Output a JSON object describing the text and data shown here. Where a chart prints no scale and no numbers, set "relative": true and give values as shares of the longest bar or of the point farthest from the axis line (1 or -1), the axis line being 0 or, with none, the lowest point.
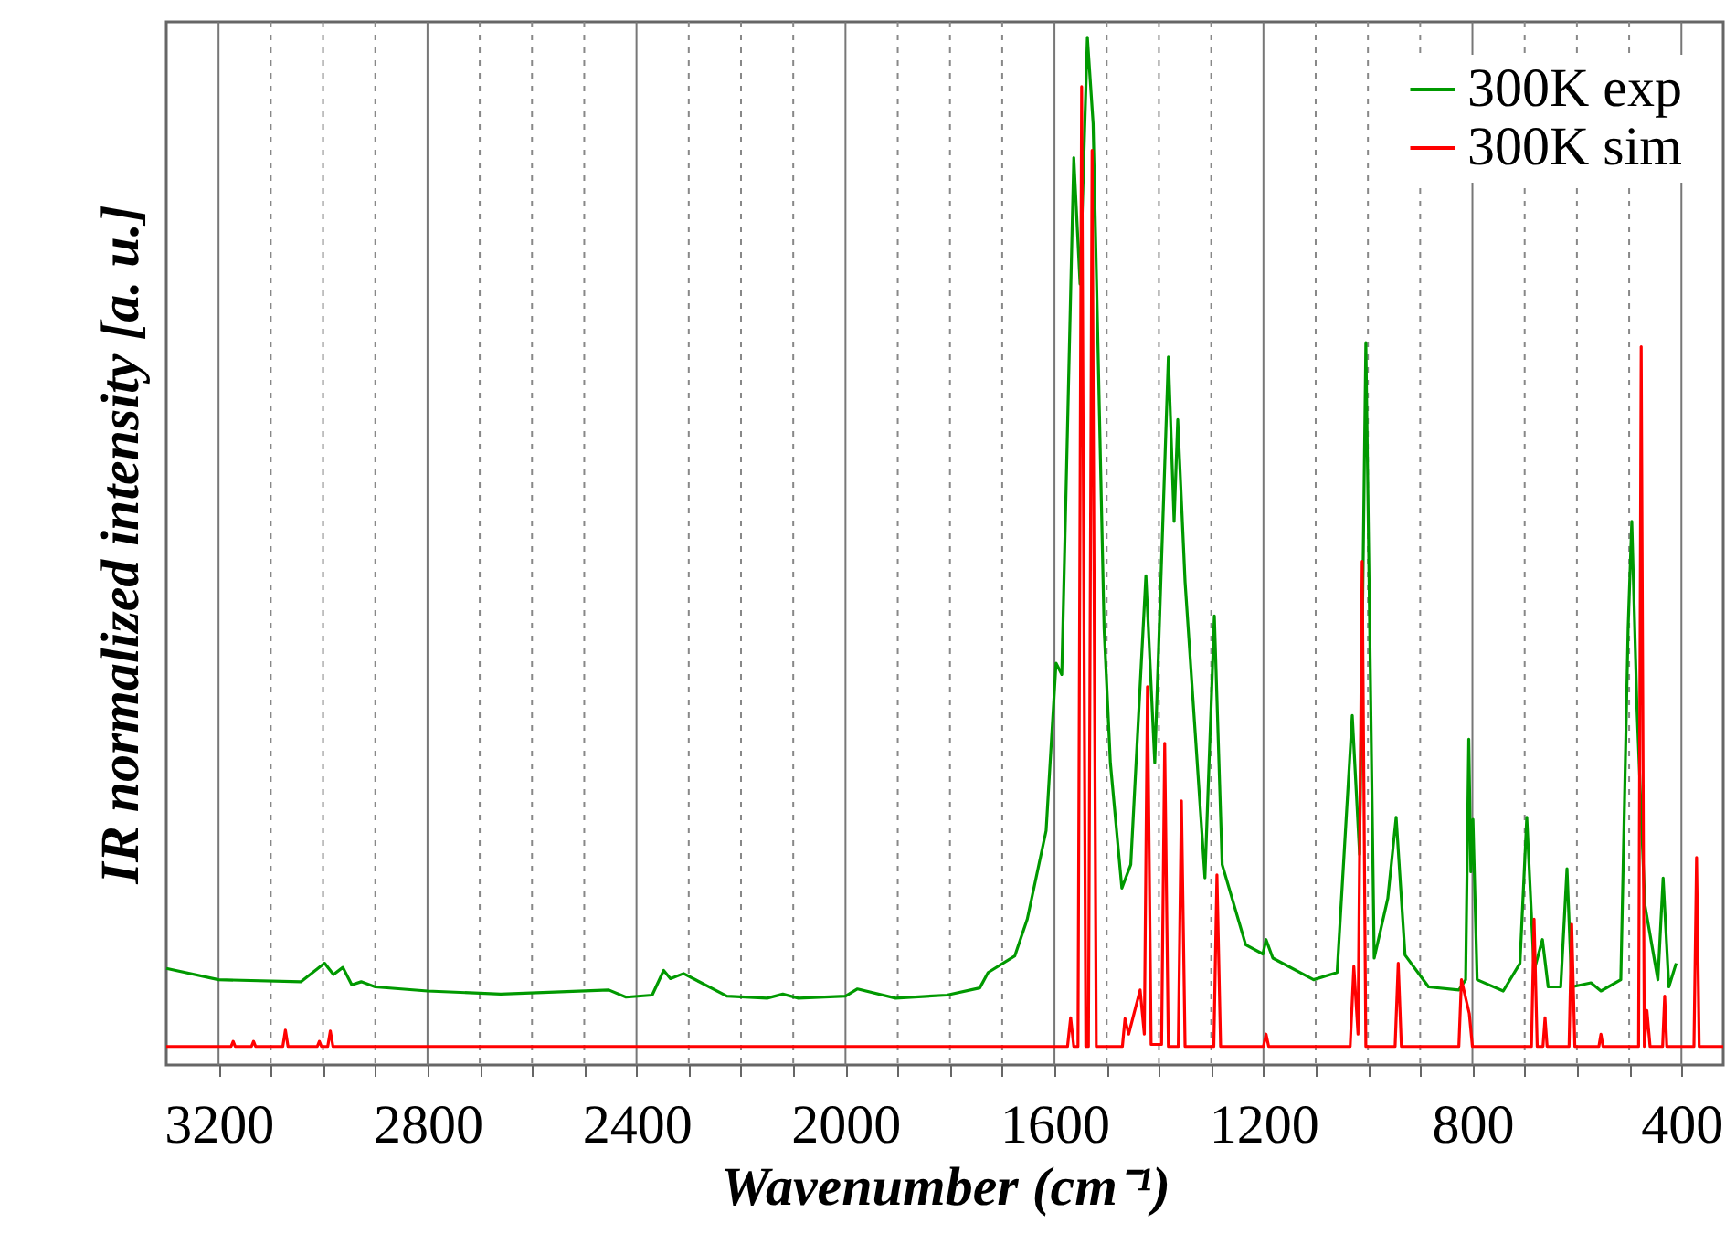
{
  "chart_data": {
    "type": "line",
    "relative": true,
    "xlabel": "Wavenumber (cm⁻¹)",
    "ylabel": "IR normalized intensity [a. u.]",
    "xlim": [
      3300,
      320
    ],
    "xticks": [
      3200,
      {
        "value": 3100,
        "label": null
      },
      {
        "value": 3000,
        "label": null
      },
      {
        "value": 2900,
        "label": null
      },
      2800,
      {
        "value": 2700,
        "label": null
      },
      {
        "value": 2600,
        "label": null
      },
      {
        "value": 2500,
        "label": null
      },
      2400,
      {
        "value": 2300,
        "label": null
      },
      {
        "value": 2200,
        "label": null
      },
      {
        "value": 2100,
        "label": null
      },
      2000,
      {
        "value": 1900,
        "label": null
      },
      {
        "value": 1800,
        "label": null
      },
      {
        "value": 1700,
        "label": null
      },
      1600,
      {
        "value": 1500,
        "label": null
      },
      {
        "value": 1400,
        "label": null
      },
      {
        "value": 1300,
        "label": null
      },
      1200,
      {
        "value": 1100,
        "label": null
      },
      {
        "value": 1000,
        "label": null
      },
      {
        "value": 900,
        "label": null
      },
      800,
      {
        "value": 700,
        "label": null
      },
      {
        "value": 600,
        "label": null
      },
      {
        "value": 500,
        "label": null
      },
      400
    ],
    "grid": "x",
    "legend": "top right",
    "tick_labels": "x",
    "line_style": "solid",
    "marker": "none",
    "series": [
      {
        "name": "300K exp",
        "color": "#009900",
        "x": [
          3300,
          3200,
          3042,
          2997,
          2980,
          2962,
          2945,
          2927,
          2900,
          2800,
          2660,
          2453,
          2420,
          2370,
          2348,
          2335,
          2310,
          2227,
          2150,
          2120,
          2090,
          2000,
          1977,
          1904,
          1806,
          1743,
          1727,
          1676,
          1652,
          1616,
          1597,
          1586,
          1563,
          1551,
          1537,
          1526,
          1505,
          1493,
          1471,
          1454,
          1425,
          1408,
          1382,
          1371,
          1364,
          1350,
          1312,
          1294,
          1279,
          1234,
          1201,
          1195,
          1182,
          1104,
          1059,
          1030,
          1016,
          1004,
          988,
          962,
          946,
          929,
          884,
          826,
          813,
          807,
          803,
          799,
          791,
          741,
          709,
          696,
          682,
          666,
          655,
          631,
          619,
          610,
          573,
          554,
          516,
          502,
          495,
          485,
          470,
          445,
          435,
          424,
          410
        ],
        "values": [
          0.094,
          0.083,
          0.081,
          0.099,
          0.088,
          0.095,
          0.078,
          0.081,
          0.076,
          0.072,
          0.069,
          0.073,
          0.066,
          0.068,
          0.092,
          0.084,
          0.089,
          0.067,
          0.065,
          0.069,
          0.065,
          0.067,
          0.074,
          0.065,
          0.068,
          0.075,
          0.09,
          0.106,
          0.142,
          0.228,
          0.391,
          0.38,
          0.883,
          0.76,
          1,
          0.916,
          0.425,
          0.294,
          0.172,
          0.195,
          0.476,
          0.294,
          0.689,
          0.529,
          0.628,
          0.47,
          0.182,
          0.437,
          0.195,
          0.117,
          0.108,
          0.122,
          0.104,
          0.083,
          0.09,
          0.34,
          0.205,
          0.703,
          0.104,
          0.162,
          0.241,
          0.107,
          0.076,
          0.073,
          0.083,
          0.317,
          0.188,
          0.239,
          0.083,
          0.072,
          0.099,
          0.241,
          0.092,
          0.122,
          0.076,
          0.076,
          0.191,
          0.076,
          0.08,
          0.072,
          0.083,
          0.425,
          0.529,
          0.346,
          0.156,
          0.083,
          0.182,
          0.076,
          0.099
        ]
      },
      {
        "name": "300K sim",
        "color": "#ff0000",
        "x": [
          3300,
          3176,
          3172,
          3168,
          3137,
          3133,
          3129,
          3077,
          3072,
          3067,
          3011,
          3007,
          3003,
          2991,
          2986,
          2981,
          1575,
          1569,
          1563,
          1555,
          1548,
          1540,
          1535,
          1528,
          1520,
          1470,
          1465,
          1458,
          1436,
          1428,
          1422,
          1415,
          1395,
          1389,
          1382,
          1363,
          1357,
          1350,
          1295,
          1289,
          1282,
          1200,
          1195,
          1190,
          1034,
          1027,
          1019,
          1011,
          1004,
          948,
          942,
          936,
          826,
          821,
          806,
          800,
          687,
          682,
          676,
          665,
          661,
          657,
          615,
          610,
          604,
          558,
          554,
          550,
          482,
          477,
          471,
          466,
          460,
          436,
          432,
          428,
          376,
          371,
          366,
          320
        ],
        "values": [
          0.018,
          0.018,
          0.023,
          0.018,
          0.018,
          0.023,
          0.018,
          0.018,
          0.034,
          0.018,
          0.018,
          0.023,
          0.018,
          0.018,
          0.033,
          0.018,
          0.018,
          0.046,
          0.018,
          0.018,
          0.952,
          0.018,
          0.018,
          0.89,
          0.018,
          0.018,
          0.045,
          0.03,
          0.073,
          0.03,
          0.368,
          0.02,
          0.02,
          0.313,
          0.018,
          0.018,
          0.257,
          0.018,
          0.018,
          0.185,
          0.018,
          0.018,
          0.03,
          0.018,
          0.018,
          0.096,
          0.03,
          0.49,
          0.018,
          0.018,
          0.099,
          0.018,
          0.018,
          0.083,
          0.05,
          0.018,
          0.018,
          0.142,
          0.018,
          0.018,
          0.046,
          0.018,
          0.018,
          0.137,
          0.018,
          0.018,
          0.03,
          0.018,
          0.018,
          0.699,
          0.018,
          0.053,
          0.018,
          0.018,
          0.067,
          0.018,
          0.018,
          0.202,
          0.018,
          0.018
        ]
      }
    ]
  }
}
